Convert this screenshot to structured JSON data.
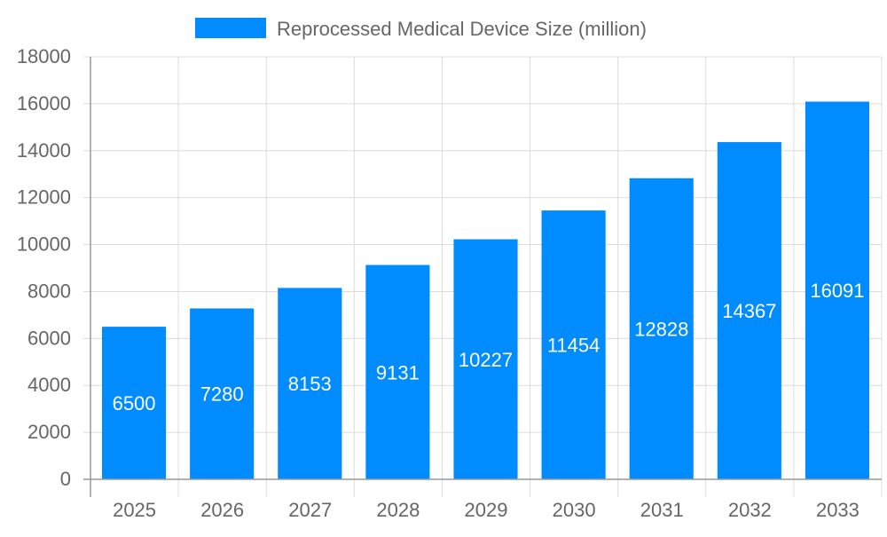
{
  "chart_data": {
    "type": "bar",
    "title": "",
    "xlabel": "",
    "ylabel": "",
    "categories": [
      "2025",
      "2026",
      "2027",
      "2028",
      "2029",
      "2030",
      "2031",
      "2032",
      "2033"
    ],
    "series": [
      {
        "name": "Reprocessed Medical Device Size (million)",
        "values": [
          6500,
          7280,
          8153,
          9131,
          10227,
          11454,
          12828,
          14367,
          16091
        ],
        "color": "#008cff"
      }
    ],
    "ylim": [
      0,
      18000
    ],
    "yticks": [
      0,
      2000,
      4000,
      6000,
      8000,
      10000,
      12000,
      14000,
      16000,
      18000
    ],
    "grid": true,
    "legend": "top",
    "data_labels": true
  }
}
